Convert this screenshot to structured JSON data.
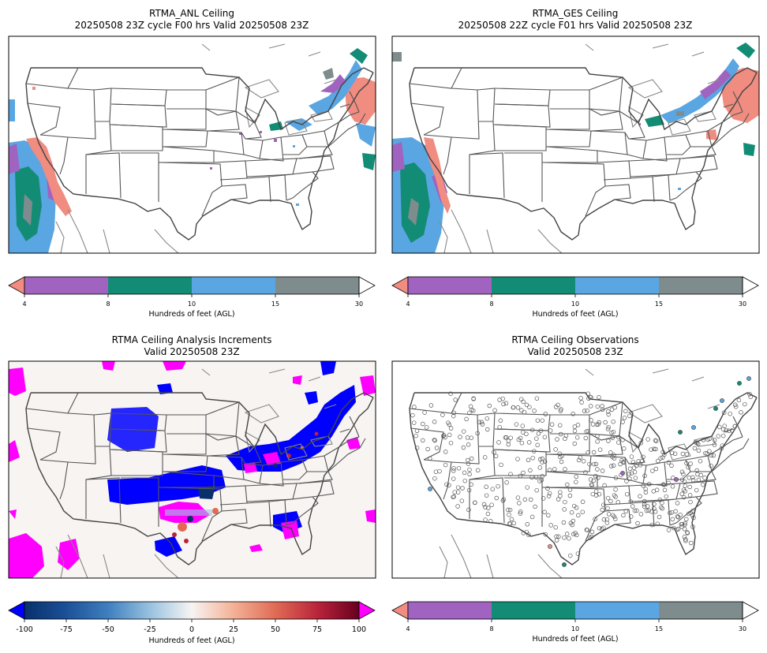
{
  "panels": {
    "anl": {
      "title_line1": "RTMA_ANL Ceiling",
      "title_line2": "20250508 23Z cycle F00 hrs Valid 20250508 23Z"
    },
    "ges": {
      "title_line1": "RTMA_GES Ceiling",
      "title_line2": "20250508 22Z cycle F01 hrs Valid 20250508 23Z"
    },
    "inc": {
      "title_line1": "RTMA Ceiling Analysis Increments",
      "title_line2": "Valid 20250508 23Z"
    },
    "obs": {
      "title_line1": "RTMA Ceiling Observations",
      "title_line2": "Valid 20250508 23Z"
    }
  },
  "ceiling_colorbar": {
    "ticks": [
      "4",
      "8",
      "10",
      "15",
      "30"
    ],
    "label": "Hundreds of feet (AGL)",
    "colors": {
      "under": "#f08c80",
      "c4_8": "#a064c0",
      "c8_10": "#138c76",
      "c10_15": "#5aa6e2",
      "c15_30": "#7f8c8d",
      "over": "#ffffff"
    }
  },
  "increment_colorbar": {
    "ticks": [
      "-100",
      "-75",
      "-50",
      "-25",
      "0",
      "25",
      "50",
      "75",
      "100"
    ],
    "label": "Hundreds of feet (AGL)",
    "under_color": "#0000ff",
    "over_color": "#ff00ff"
  }
}
